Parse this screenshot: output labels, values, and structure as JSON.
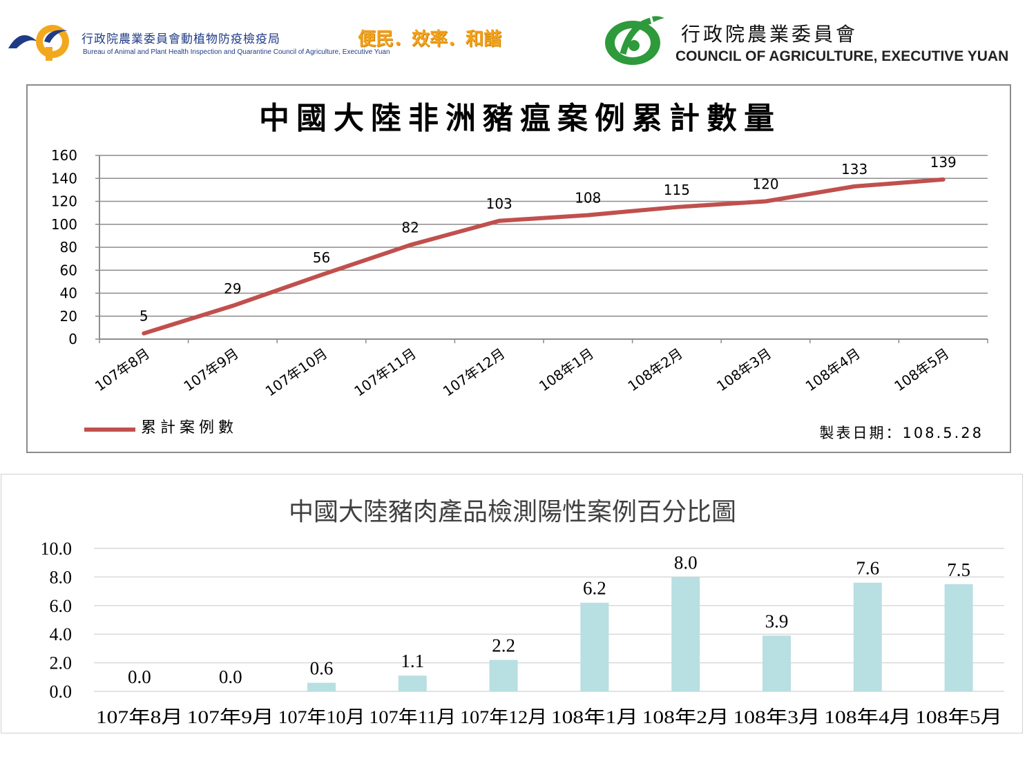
{
  "header": {
    "baphiq_name": "行政院農業委員會動植物防疫檢疫局",
    "baphiq_name_en": "Bureau of Animal and Plant Health Inspection and Quarantine Council of Agriculture, Executive Yuan",
    "slogan": "便民．效率．和諧",
    "coa_name_zh": "行政院農業委員會",
    "coa_name_en": "COUNCIL OF AGRICULTURE, EXECUTIVE YUAN"
  },
  "chart_data": [
    {
      "type": "line",
      "title": "中國大陸非洲豬瘟案例累計數量",
      "categories": [
        "107年8月",
        "107年9月",
        "107年10月",
        "107年11月",
        "107年12月",
        "108年1月",
        "108年2月",
        "108年3月",
        "108年4月",
        "108年5月"
      ],
      "series": [
        {
          "name": "累計案例數",
          "values": [
            5,
            29,
            56,
            82,
            103,
            108,
            115,
            120,
            133,
            139
          ]
        }
      ],
      "ylim": [
        0,
        160
      ],
      "yticks": [
        "0",
        "20",
        "40",
        "60",
        "80",
        "100",
        "120",
        "140",
        "160"
      ],
      "grid": true,
      "legend_position": "bottom-left",
      "note": "製表日期：108.5.28",
      "colors": {
        "line": "#c0504d",
        "grid": "#8c8c8c"
      }
    },
    {
      "type": "bar",
      "title": "中國大陸豬肉產品檢測陽性案例百分比圖",
      "categories": [
        "107年8月",
        "107年9月",
        "107年10月",
        "107年11月",
        "107年12月",
        "108年1月",
        "108年2月",
        "108年3月",
        "108年4月",
        "108年5月"
      ],
      "values": [
        0.0,
        0.0,
        0.6,
        1.1,
        2.2,
        6.2,
        8.0,
        3.9,
        7.6,
        7.5
      ],
      "value_labels": [
        "0.0",
        "0.0",
        "0.6",
        "1.1",
        "2.2",
        "6.2",
        "8.0",
        "3.9",
        "7.6",
        "7.5"
      ],
      "ylim": [
        0,
        10
      ],
      "yticks": [
        "0.0",
        "2.0",
        "4.0",
        "6.0",
        "8.0",
        "10.0"
      ],
      "grid": true,
      "colors": {
        "bar": "#b8dfe2",
        "grid": "#d9d9d9"
      }
    }
  ]
}
